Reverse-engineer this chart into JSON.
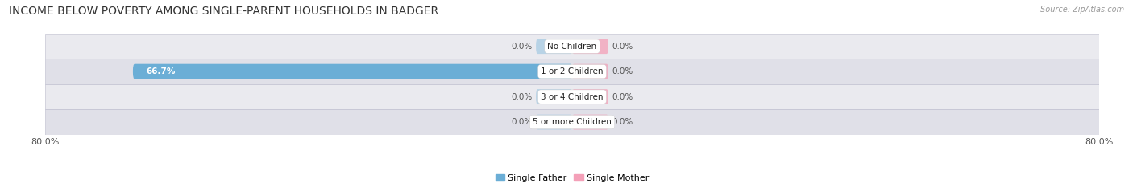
{
  "title": "INCOME BELOW POVERTY AMONG SINGLE-PARENT HOUSEHOLDS IN BADGER",
  "source": "Source: ZipAtlas.com",
  "categories": [
    "No Children",
    "1 or 2 Children",
    "3 or 4 Children",
    "5 or more Children"
  ],
  "single_father": [
    0.0,
    66.7,
    0.0,
    0.0
  ],
  "single_mother": [
    0.0,
    0.0,
    0.0,
    0.0
  ],
  "x_min": -80.0,
  "x_max": 80.0,
  "father_color": "#6baed6",
  "father_color_light": "#a8cce4",
  "mother_color": "#f4a0b8",
  "mother_color_light": "#f4a0b8",
  "row_colors": [
    "#eaeaef",
    "#e0e0e8",
    "#eaeaef",
    "#e0e0e8"
  ],
  "label_color_dark": "#555555",
  "label_color_white": "#ffffff",
  "title_fontsize": 10,
  "tick_fontsize": 8,
  "label_fontsize": 7.5,
  "category_fontsize": 7.5,
  "legend_fontsize": 8,
  "bar_height": 0.6,
  "small_bar_size": 5.5
}
